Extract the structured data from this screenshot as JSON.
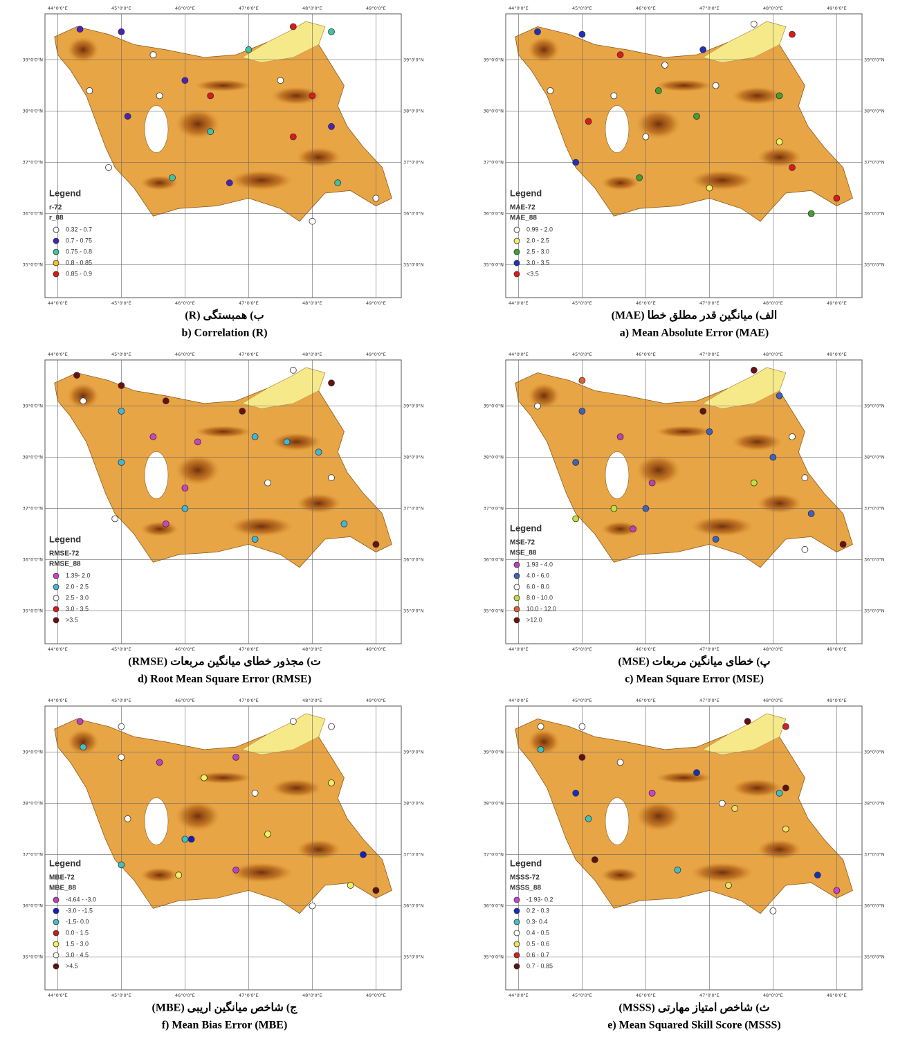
{
  "lon_labels": [
    "44°0'0\"E",
    "45°0'0\"E",
    "46°0'0\"E",
    "47°0'0\"E",
    "48°0'0\"E",
    "49°0'0\"E"
  ],
  "lon_values": [
    44,
    45,
    46,
    47,
    48,
    49
  ],
  "lat_labels": [
    "35°0'0\"N",
    "36°0'0\"N",
    "37°0'0\"N",
    "38°0'0\"N",
    "39°0'0\"N"
  ],
  "lat_values": [
    35,
    36,
    37,
    38,
    39
  ],
  "panels": [
    {
      "caption_fa": "ب) همبستگی (R)",
      "caption_en": "b) Correlation (R)",
      "legend_title": "Legend",
      "layers": [
        "r-72",
        "r_88"
      ],
      "classes": [
        {
          "label": "0.32 - 0.7",
          "color": "#ffffff"
        },
        {
          "label": "0.7 - 0.75",
          "color": "#4a22b8"
        },
        {
          "label": "0.75 - 0.8",
          "color": "#40c4a0"
        },
        {
          "label": "0.8 - 0.85",
          "color": "#f0c030"
        },
        {
          "label": "0.85 - 0.9",
          "color": "#e01818"
        }
      ],
      "stations": [
        [
          44.35,
          39.6,
          1
        ],
        [
          45.0,
          39.55,
          1
        ],
        [
          45.5,
          39.1,
          0
        ],
        [
          46.0,
          38.6,
          1
        ],
        [
          47.0,
          39.2,
          2
        ],
        [
          47.7,
          39.65,
          4
        ],
        [
          48.3,
          39.55,
          2
        ],
        [
          44.5,
          38.4,
          0
        ],
        [
          45.6,
          38.3,
          0
        ],
        [
          46.4,
          38.3,
          4
        ],
        [
          47.5,
          38.6,
          0
        ],
        [
          48.0,
          38.3,
          4
        ],
        [
          45.1,
          37.9,
          1
        ],
        [
          46.4,
          37.6,
          2
        ],
        [
          47.7,
          37.5,
          4
        ],
        [
          48.3,
          37.7,
          1
        ],
        [
          44.8,
          36.9,
          0
        ],
        [
          45.8,
          36.7,
          2
        ],
        [
          46.7,
          36.6,
          1
        ],
        [
          48.4,
          36.6,
          2
        ],
        [
          49.0,
          36.3,
          0
        ],
        [
          48.0,
          35.85,
          0
        ]
      ]
    },
    {
      "caption_fa": "الف) میانگین قدر مطلق خطا (MAE)",
      "caption_en": "a) Mean Absolute Error (MAE)",
      "legend_title": "Legend",
      "layers": [
        "MAE-72",
        "MAE_88"
      ],
      "classes": [
        {
          "label": "0.99 - 2.0",
          "color": "#ffffff"
        },
        {
          "label": "2.0 - 2.5",
          "color": "#f0f060"
        },
        {
          "label": "2.5 - 3.0",
          "color": "#40a030"
        },
        {
          "label": "3.0 - 3.5",
          "color": "#2030c0"
        },
        {
          "label": "<3.5",
          "color": "#e01818"
        }
      ],
      "stations": [
        [
          44.3,
          39.55,
          3
        ],
        [
          45.0,
          39.5,
          3
        ],
        [
          45.6,
          39.1,
          4
        ],
        [
          46.3,
          38.9,
          0
        ],
        [
          46.9,
          39.2,
          3
        ],
        [
          47.7,
          39.7,
          0
        ],
        [
          48.3,
          39.5,
          4
        ],
        [
          44.5,
          38.4,
          0
        ],
        [
          45.5,
          38.3,
          0
        ],
        [
          46.2,
          38.4,
          2
        ],
        [
          47.1,
          38.5,
          0
        ],
        [
          48.1,
          38.3,
          2
        ],
        [
          45.1,
          37.8,
          4
        ],
        [
          46.0,
          37.5,
          0
        ],
        [
          46.8,
          37.9,
          2
        ],
        [
          48.1,
          37.4,
          1
        ],
        [
          44.9,
          37.0,
          3
        ],
        [
          45.9,
          36.7,
          2
        ],
        [
          47.0,
          36.5,
          1
        ],
        [
          48.3,
          36.9,
          4
        ],
        [
          49.0,
          36.3,
          4
        ],
        [
          48.6,
          36.0,
          2
        ]
      ]
    },
    {
      "caption_fa": "ت) مجذور خطای میانگین مربعات (RMSE)",
      "caption_en": "d) Root Mean Square Error (RMSE)",
      "legend_title": "Legend",
      "layers": [
        "RMSE-72",
        "RMSE_88"
      ],
      "classes": [
        {
          "label": "1.39- 2.0",
          "color": "#d040c0"
        },
        {
          "label": "2.0 - 2.5",
          "color": "#40b8d8"
        },
        {
          "label": "2.5 - 3.0",
          "color": "#ffffff"
        },
        {
          "label": "3.0 - 3.5",
          "color": "#d02020"
        },
        {
          "label": ">3.5",
          "color": "#6a1010"
        }
      ],
      "stations": [
        [
          44.3,
          39.6,
          4
        ],
        [
          45.0,
          39.4,
          4
        ],
        [
          45.7,
          39.1,
          4
        ],
        [
          44.4,
          39.1,
          2
        ],
        [
          45.0,
          38.9,
          1
        ],
        [
          46.9,
          38.9,
          4
        ],
        [
          47.7,
          39.7,
          2
        ],
        [
          48.3,
          39.45,
          4
        ],
        [
          45.5,
          38.4,
          0
        ],
        [
          46.2,
          38.3,
          0
        ],
        [
          47.1,
          38.4,
          1
        ],
        [
          47.6,
          38.3,
          1
        ],
        [
          48.1,
          38.1,
          1
        ],
        [
          45.0,
          37.9,
          1
        ],
        [
          46.0,
          37.4,
          0
        ],
        [
          46.0,
          37.0,
          1
        ],
        [
          47.3,
          37.5,
          2
        ],
        [
          48.3,
          37.6,
          2
        ],
        [
          44.9,
          36.8,
          2
        ],
        [
          45.7,
          36.7,
          0
        ],
        [
          47.1,
          36.4,
          1
        ],
        [
          48.5,
          36.7,
          1
        ],
        [
          49.0,
          36.3,
          4
        ]
      ]
    },
    {
      "caption_fa": "پ) خطای میانگین مربعات (MSE)",
      "caption_en": "c) Mean Square Error (MSE)",
      "legend_title": "Legend",
      "layers": [
        "MSE-72",
        "MSE_88"
      ],
      "classes": [
        {
          "label": "1.93 - 4.0",
          "color": "#c040b0"
        },
        {
          "label": "4.0 - 6.0",
          "color": "#4060c0"
        },
        {
          "label": "6.0 - 8.0",
          "color": "#ffffff"
        },
        {
          "label": "8.0 - 10.0",
          "color": "#c0e040"
        },
        {
          "label": "10.0 - 12.0",
          "color": "#e06030"
        },
        {
          "label": ">12.0",
          "color": "#6a1010"
        }
      ],
      "stations": [
        [
          44.3,
          39.0,
          2
        ],
        [
          45.0,
          39.5,
          4
        ],
        [
          45.0,
          38.9,
          1
        ],
        [
          45.6,
          38.4,
          0
        ],
        [
          46.9,
          38.9,
          5
        ],
        [
          47.0,
          38.5,
          1
        ],
        [
          47.7,
          39.7,
          5
        ],
        [
          48.1,
          39.2,
          1
        ],
        [
          48.3,
          38.4,
          2
        ],
        [
          48.0,
          38.0,
          1
        ],
        [
          44.9,
          37.9,
          1
        ],
        [
          46.1,
          37.5,
          0
        ],
        [
          47.7,
          37.5,
          3
        ],
        [
          48.5,
          37.6,
          2
        ],
        [
          45.5,
          37.0,
          3
        ],
        [
          46.0,
          37.0,
          1
        ],
        [
          44.9,
          36.8,
          3
        ],
        [
          45.8,
          36.6,
          0
        ],
        [
          47.1,
          36.4,
          1
        ],
        [
          48.6,
          36.9,
          1
        ],
        [
          49.1,
          36.3,
          5
        ],
        [
          48.5,
          36.2,
          2
        ]
      ]
    },
    {
      "caption_fa": "ج) شاخص میانگین اریبی (MBE)",
      "caption_en": "f) Mean Bias Error (MBE)",
      "legend_title": "Legend",
      "layers": [
        "MBE-72",
        "MBE_88"
      ],
      "classes": [
        {
          "label": "-4.64 - -3.0",
          "color": "#c040c0"
        },
        {
          "label": "-3.0 - -1.5",
          "color": "#1020c0"
        },
        {
          "label": "-1.5- 0.0",
          "color": "#40c0c0"
        },
        {
          "label": "0.0 - 1.5",
          "color": "#c02020"
        },
        {
          "label": "1.5 - 3.0",
          "color": "#f0f060"
        },
        {
          "label": "3.0 - 4.5",
          "color": "#ffffff"
        },
        {
          "label": ">4.5",
          "color": "#601010"
        }
      ],
      "stations": [
        [
          44.35,
          39.6,
          0
        ],
        [
          44.4,
          39.1,
          2
        ],
        [
          45.0,
          39.5,
          5
        ],
        [
          45.0,
          38.9,
          5
        ],
        [
          45.6,
          38.8,
          0
        ],
        [
          46.8,
          38.9,
          0
        ],
        [
          47.7,
          39.6,
          5
        ],
        [
          48.3,
          39.5,
          5
        ],
        [
          46.3,
          38.5,
          4
        ],
        [
          47.1,
          38.2,
          5
        ],
        [
          48.3,
          38.4,
          4
        ],
        [
          45.1,
          37.7,
          5
        ],
        [
          46.0,
          37.3,
          2
        ],
        [
          46.1,
          37.3,
          1
        ],
        [
          47.3,
          37.4,
          4
        ],
        [
          48.8,
          37.0,
          1
        ],
        [
          45.0,
          36.8,
          2
        ],
        [
          45.9,
          36.6,
          4
        ],
        [
          46.8,
          36.7,
          0
        ],
        [
          48.6,
          36.4,
          4
        ],
        [
          48.0,
          36.0,
          5
        ],
        [
          49.0,
          36.3,
          6
        ]
      ]
    },
    {
      "caption_fa": "ث) شاخص امتیاز مهارتی (MSSS)",
      "caption_en": "e) Mean Squared Skill Score (MSSS)",
      "legend_title": "Legend",
      "layers": [
        "MSSS-72",
        "MSSS_88"
      ],
      "classes": [
        {
          "label": "-1.93- 0.2",
          "color": "#d040d0"
        },
        {
          "label": "0.2 - 0.3",
          "color": "#1030c0"
        },
        {
          "label": "0.3- 0.4",
          "color": "#40c0c0"
        },
        {
          "label": "0.4 - 0.5",
          "color": "#ffffff"
        },
        {
          "label": "0.5 - 0.6",
          "color": "#f0e060"
        },
        {
          "label": "0.6 - 0.7",
          "color": "#d02020"
        },
        {
          "label": "0.7 - 0.85",
          "color": "#601010"
        }
      ],
      "stations": [
        [
          44.35,
          39.5,
          3
        ],
        [
          44.35,
          39.05,
          2
        ],
        [
          45.0,
          39.5,
          3
        ],
        [
          45.0,
          38.9,
          6
        ],
        [
          45.6,
          38.8,
          3
        ],
        [
          46.8,
          38.6,
          1
        ],
        [
          47.6,
          39.6,
          6
        ],
        [
          48.2,
          39.5,
          5
        ],
        [
          44.9,
          38.2,
          1
        ],
        [
          45.1,
          37.7,
          2
        ],
        [
          46.1,
          38.2,
          0
        ],
        [
          47.2,
          38.0,
          3
        ],
        [
          48.1,
          38.2,
          2
        ],
        [
          48.2,
          38.3,
          6
        ],
        [
          47.4,
          37.9,
          4
        ],
        [
          48.2,
          37.5,
          4
        ],
        [
          45.2,
          36.9,
          6
        ],
        [
          46.5,
          36.7,
          2
        ],
        [
          47.3,
          36.4,
          4
        ],
        [
          48.7,
          36.6,
          1
        ],
        [
          49.0,
          36.3,
          0
        ],
        [
          48.0,
          35.9,
          3
        ]
      ]
    }
  ]
}
